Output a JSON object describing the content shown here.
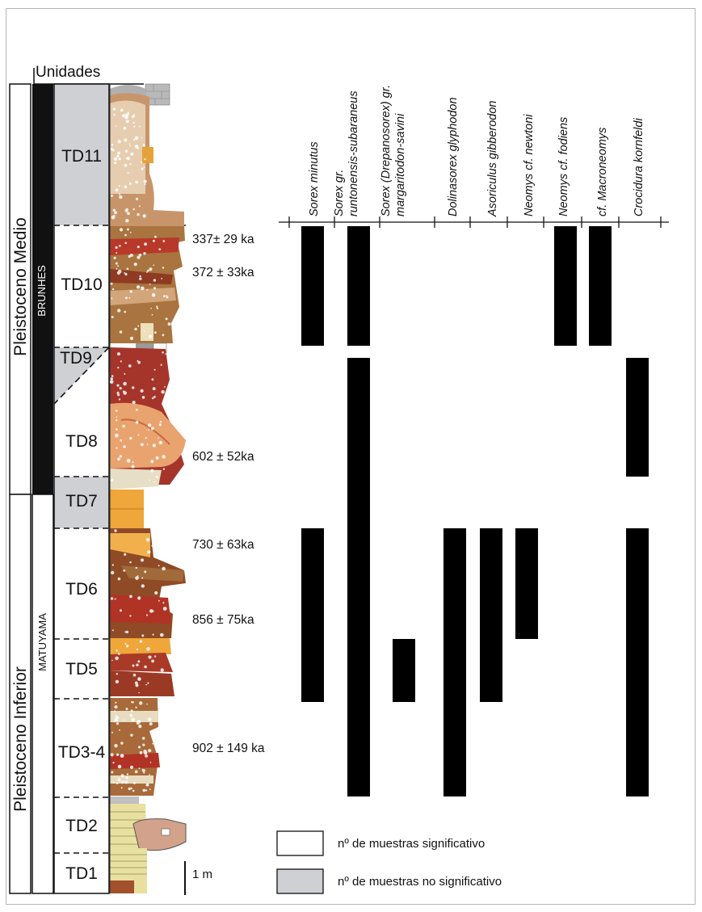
{
  "header": {
    "units_label": "Unidades"
  },
  "periods": [
    {
      "label": "Pleistoceno Medio"
    },
    {
      "label": "Pleistoceno Inferior"
    }
  ],
  "chrons": [
    {
      "label": "BRUNHES"
    },
    {
      "label": "MATUYAMA"
    }
  ],
  "units": [
    {
      "label": "TD11",
      "significant": false
    },
    {
      "label": "TD10",
      "significant": true
    },
    {
      "label": "TD9",
      "significant": false
    },
    {
      "label": "TD8",
      "significant": true
    },
    {
      "label": "TD7",
      "significant": false
    },
    {
      "label": "TD6",
      "significant": true
    },
    {
      "label": "TD5",
      "significant": true
    },
    {
      "label": "TD3-4",
      "significant": true
    },
    {
      "label": "TD2",
      "significant": true
    },
    {
      "label": "TD1",
      "significant": true
    }
  ],
  "dates": [
    {
      "label": "337± 29 ka"
    },
    {
      "label": "372 ± 33ka"
    },
    {
      "label": "602 ± 52ka"
    },
    {
      "label": "730 ± 63ka"
    },
    {
      "label": "856 ± 75ka"
    },
    {
      "label": "902 ± 149 ka"
    }
  ],
  "species": [
    {
      "lines": [
        "Sorex minutus"
      ],
      "ranges": [
        [
          "TD10",
          "TD10"
        ],
        [
          "TD6",
          "TD5"
        ]
      ]
    },
    {
      "lines": [
        "Sorex gr.",
        "runtonensis-subaraneus"
      ],
      "ranges": [
        [
          "TD10",
          "TD10"
        ],
        [
          "TD9",
          "TD3-4"
        ]
      ]
    },
    {
      "lines": [
        "Sorex (Drepanosorex) gr.",
        "margaritodon-savini"
      ],
      "ranges": [
        [
          "TD5",
          "TD5"
        ]
      ]
    },
    {
      "lines": [
        "Dolinasorex glyphodon"
      ],
      "ranges": [
        [
          "TD6",
          "TD3-4"
        ]
      ]
    },
    {
      "lines": [
        "Asoriculus gibberodon"
      ],
      "ranges": [
        [
          "TD6",
          "TD5"
        ]
      ]
    },
    {
      "lines": [
        "Neomys cf. newtoni"
      ],
      "ranges": [
        [
          "TD6",
          "TD6"
        ]
      ]
    },
    {
      "lines": [
        "Neomys cf. fodiens"
      ],
      "ranges": [
        [
          "TD10",
          "TD10"
        ]
      ]
    },
    {
      "lines": [
        "cf. Macroneomys"
      ],
      "ranges": [
        [
          "TD10",
          "TD10"
        ]
      ]
    },
    {
      "lines": [
        "Crocidura kornfeldi"
      ],
      "ranges": [
        [
          "TD9",
          "TD8"
        ],
        [
          "TD6",
          "TD3-4"
        ]
      ]
    }
  ],
  "scale_bar": {
    "label": "1 m"
  },
  "legend": [
    {
      "label": "nº de muestras significativo",
      "color": "#ffffff"
    },
    {
      "label": "nº de muestras no significativo",
      "color": "#cfd0d4"
    }
  ]
}
